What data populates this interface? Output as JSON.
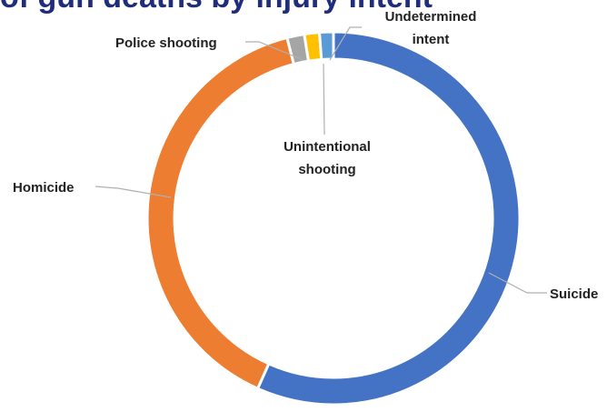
{
  "title": "of gun deaths by injury intent",
  "chart_data": {
    "type": "pie",
    "title": "of gun deaths by injury intent",
    "categories": [
      "Suicide",
      "Homicide",
      "Police shooting",
      "Unintentional shooting",
      "Undetermined intent"
    ],
    "values": [
      56.5,
      39.2,
      1.5,
      1.3,
      1.2
    ],
    "unit": "",
    "colors": [
      "#4472c4",
      "#ed7d31",
      "#a5a5a5",
      "#ffc000",
      "#5b9bd5"
    ],
    "legend": "none (leader-line labels)",
    "style": "donut",
    "labels": {
      "suicide": "Suicide",
      "homicide": "Homicide",
      "police": "Police shooting",
      "unintentional_1": "Unintentional",
      "unintentional_2": "shooting",
      "undetermined_1": "Undetermined",
      "undetermined_2": "intent"
    }
  }
}
